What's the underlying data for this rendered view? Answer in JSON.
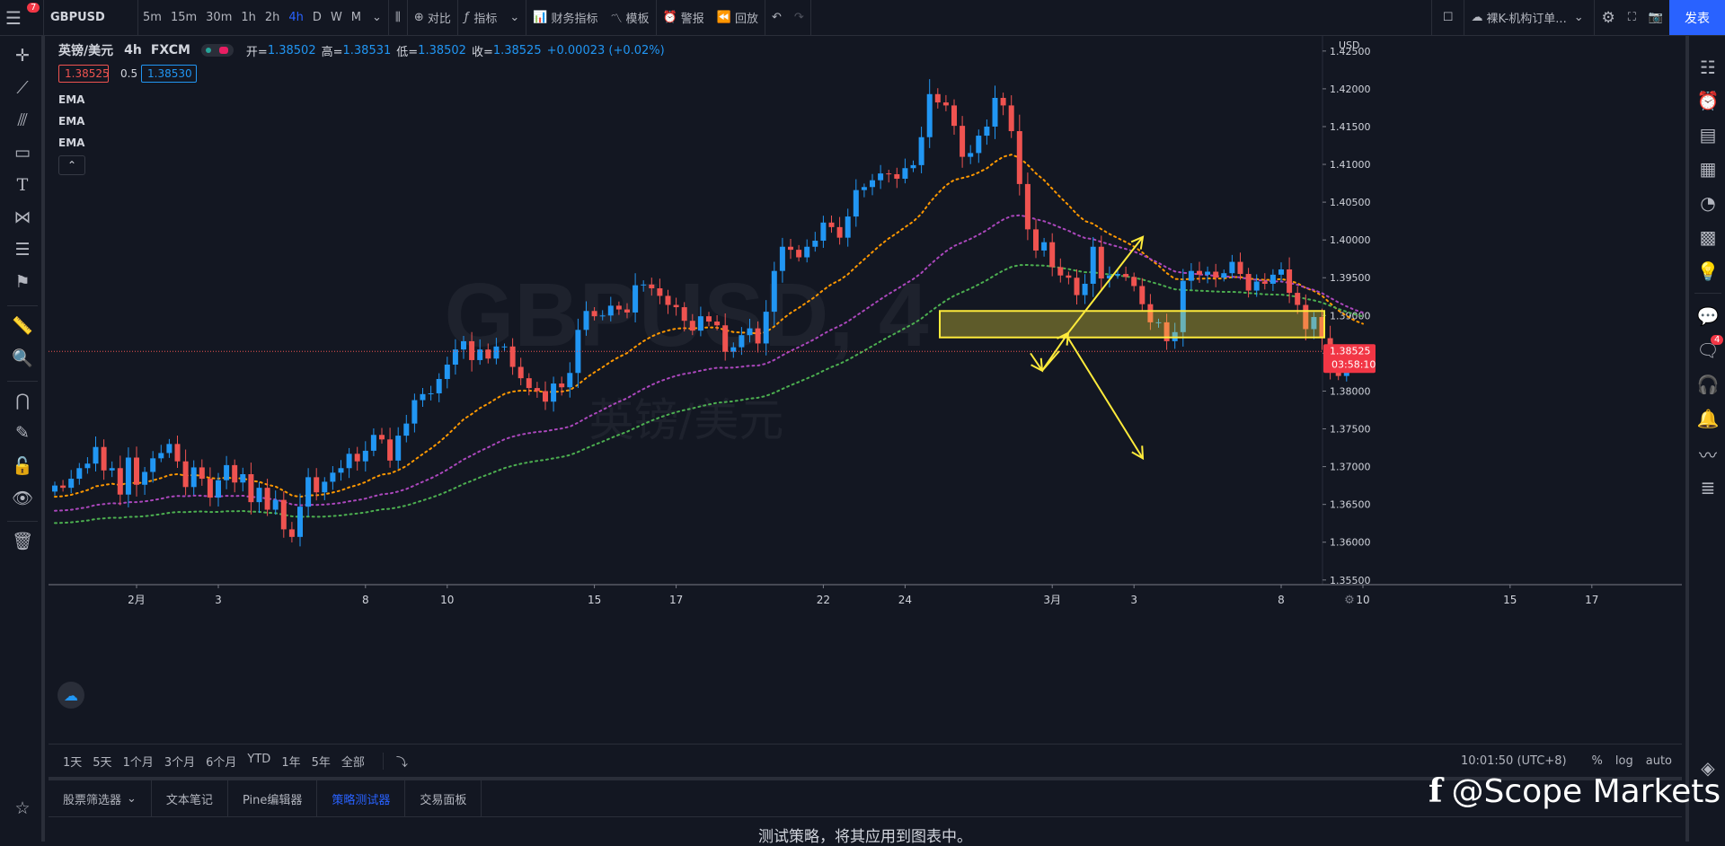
{
  "toolbar": {
    "notification_count": "7",
    "symbol": "GBPUSD",
    "intervals": [
      "5m",
      "15m",
      "30m",
      "1h",
      "2h",
      "4h",
      "D",
      "W",
      "M"
    ],
    "active_interval": "4h",
    "compare": "对比",
    "indicators": "指标",
    "financials": "财务指标",
    "templates": "模板",
    "alert": "警报",
    "replay": "回放",
    "layout_name": "裸K-机构订单...",
    "publish": "发表"
  },
  "legend": {
    "name": "英镑/美元",
    "interval": "4h",
    "source": "FXCM",
    "open_label": "开=",
    "open": "1.38502",
    "high_label": "高=",
    "high": "1.38531",
    "low_label": "低=",
    "low": "1.38502",
    "close_label": "收=",
    "close": "1.38525",
    "change": "+0.00023 (+0.02%)",
    "bid": "1.38525",
    "spread": "0.5",
    "ask": "1.38530",
    "ema_labels": [
      "EMA",
      "EMA",
      "EMA"
    ],
    "collapse_glyph": "⌃"
  },
  "chart_data": {
    "type": "candlestick",
    "symbol": "GBPUSD",
    "watermark": "GBPUSD, 4",
    "watermark_sub": "英镑/美元",
    "currency": "USD",
    "ylim": [
      1.3545,
      1.427
    ],
    "y_ticks": [
      "1.42500",
      "1.42000",
      "1.41500",
      "1.41000",
      "1.40500",
      "1.40000",
      "1.39500",
      "1.39000",
      "1.38500",
      "1.38000",
      "1.37500",
      "1.37000",
      "1.36500",
      "1.36000",
      "1.35500"
    ],
    "x_ticks": [
      {
        "label": "2月",
        "i": 10
      },
      {
        "label": "3",
        "i": 20
      },
      {
        "label": "8",
        "i": 38
      },
      {
        "label": "10",
        "i": 48
      },
      {
        "label": "15",
        "i": 66
      },
      {
        "label": "17",
        "i": 76
      },
      {
        "label": "22",
        "i": 94
      },
      {
        "label": "24",
        "i": 104
      },
      {
        "label": "3月",
        "i": 122
      },
      {
        "label": "3",
        "i": 132
      },
      {
        "label": "8",
        "i": 150
      },
      {
        "label": "10",
        "i": 160
      },
      {
        "label": "15",
        "i": 178
      },
      {
        "label": "17",
        "i": 188
      }
    ],
    "last_price": "1.38525",
    "countdown": "03:58:10",
    "closes": [
      1.3675,
      1.3672,
      1.3684,
      1.3698,
      1.3704,
      1.3726,
      1.3695,
      1.3698,
      1.3663,
      1.3712,
      1.3676,
      1.3693,
      1.3711,
      1.3718,
      1.373,
      1.3707,
      1.3673,
      1.3699,
      1.3684,
      1.3659,
      1.3682,
      1.3702,
      1.3679,
      1.369,
      1.3653,
      1.3672,
      1.3643,
      1.3656,
      1.3617,
      1.3607,
      1.3647,
      1.3686,
      1.3666,
      1.368,
      1.3692,
      1.3698,
      1.3717,
      1.3707,
      1.3721,
      1.3742,
      1.3736,
      1.3708,
      1.3741,
      1.3757,
      1.3788,
      1.3796,
      1.3797,
      1.3816,
      1.3835,
      1.3855,
      1.3866,
      1.3841,
      1.3855,
      1.3843,
      1.3859,
      1.3859,
      1.3832,
      1.3817,
      1.3804,
      1.38,
      1.3786,
      1.381,
      1.3805,
      1.3824,
      1.3881,
      1.3906,
      1.3899,
      1.39,
      1.3913,
      1.3908,
      1.3904,
      1.394,
      1.3941,
      1.3936,
      1.3926,
      1.3914,
      1.3911,
      1.3893,
      1.388,
      1.3899,
      1.3892,
      1.3887,
      1.3852,
      1.3858,
      1.3874,
      1.3883,
      1.3863,
      1.3905,
      1.3959,
      1.3991,
      1.3987,
      1.3977,
      1.3991,
      1.3999,
      1.4023,
      1.4017,
      1.4003,
      1.4031,
      1.4066,
      1.407,
      1.4079,
      1.4088,
      1.4087,
      1.4081,
      1.4095,
      1.4099,
      1.4136,
      1.4193,
      1.4182,
      1.4178,
      1.4151,
      1.411,
      1.4115,
      1.4138,
      1.415,
      1.4188,
      1.4178,
      1.4144,
      1.4074,
      1.4014,
      1.3986,
      1.3997,
      1.3964,
      1.3953,
      1.395,
      1.3927,
      1.3942,
      1.3991,
      1.3949,
      1.3953,
      1.3955,
      1.3951,
      1.3939,
      1.3915,
      1.3891,
      1.3891,
      1.3866,
      1.3878,
      1.3946,
      1.3959,
      1.3954,
      1.3958,
      1.395,
      1.3956,
      1.3971,
      1.3955,
      1.3933,
      1.3945,
      1.3942,
      1.3954,
      1.3961,
      1.393,
      1.3914,
      1.3882,
      1.3898,
      1.387,
      1.3826,
      1.382,
      1.3834,
      1.3839,
      1.3853
    ]
  },
  "date_range": {
    "buttons": [
      "1天",
      "5天",
      "1个月",
      "3个月",
      "6个月",
      "YTD",
      "1年",
      "5年",
      "全部"
    ],
    "time": "10:01:50 (UTC+8)",
    "pct": "%",
    "log": "log",
    "auto": "auto"
  },
  "bottom": {
    "tabs": [
      "股票筛选器",
      "文本笔记",
      "Pine编辑器",
      "策略测试器",
      "交易面板"
    ],
    "active_tab": "策略测试器",
    "message": "测试策略，将其应用到图表中。"
  },
  "sidebar_badge": "4",
  "watermark_brand": "@Scope Markets",
  "colors": {
    "up": "#2196f3",
    "down": "#ef5350",
    "ema_fast": "#ff9800",
    "ema_mid": "#ab47bc",
    "ema_slow": "#4caf50",
    "zone": "#ffeb3b"
  }
}
